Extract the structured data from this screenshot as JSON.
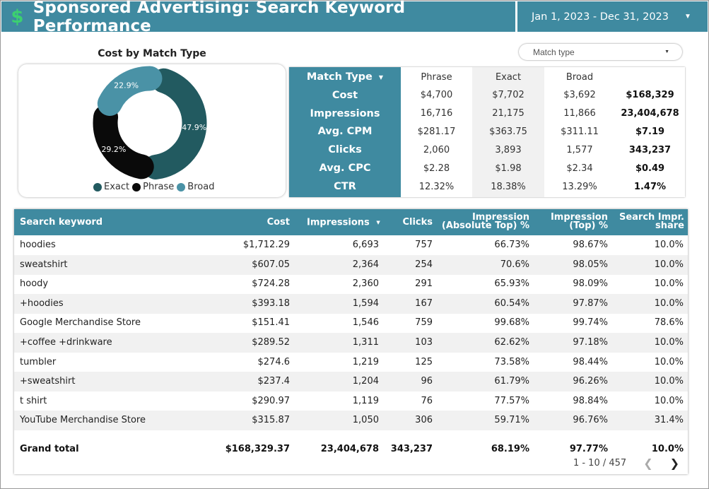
{
  "header": {
    "icon": "dollar-icon",
    "title": "Sponsored Advertising: Search Keyword Performance",
    "date_range": "Jan 1, 2023 - Dec 31, 2023"
  },
  "colors": {
    "header_bg": "#3f8aa0",
    "dollar": "#3cd070",
    "exact": "#225a60",
    "phrase": "#0a0a0a",
    "broad": "#4a92a6"
  },
  "donut": {
    "title": "Cost by Match Type",
    "segments": [
      {
        "name": "Exact",
        "percent_label": "47.9%",
        "value": 47.9
      },
      {
        "name": "Phrase",
        "percent_label": "29.2%",
        "value": 29.2
      },
      {
        "name": "Broad",
        "percent_label": "22.9%",
        "value": 22.9
      }
    ],
    "legend": [
      "Exact",
      "Phrase",
      "Broad"
    ]
  },
  "match_type_filter": {
    "label": "Match type"
  },
  "pivot": {
    "header_label": "Match Type",
    "row_labels": [
      "Cost",
      "Impressions",
      "Avg. CPM",
      "Clicks",
      "Avg. CPC",
      "CTR"
    ],
    "columns": [
      {
        "name": "Phrase",
        "values": [
          "$4,700",
          "16,716",
          "$281.17",
          "2,060",
          "$2.28",
          "12.32%"
        ]
      },
      {
        "name": "Exact",
        "values": [
          "$7,702",
          "21,175",
          "$363.75",
          "3,893",
          "$1.98",
          "18.38%"
        ]
      },
      {
        "name": "Broad",
        "values": [
          "$3,692",
          "11,866",
          "$311.11",
          "1,577",
          "$2.34",
          "13.29%"
        ]
      },
      {
        "name": "",
        "values": [
          "$168,329",
          "23,404,678",
          "$7.19",
          "343,237",
          "$0.49",
          "1.47%"
        ]
      }
    ]
  },
  "keyword_table": {
    "headers": {
      "keyword": "Search keyword",
      "cost": "Cost",
      "impressions": "Impressions",
      "clicks": "Clicks",
      "abs_top_1": "Impression",
      "abs_top_2": "(Absolute Top) %",
      "top_1": "Impression",
      "top_2": "(Top) %",
      "share_1": "Search Impr.",
      "share_2": "share"
    },
    "rows": [
      [
        "hoodies",
        "$1,712.29",
        "6,693",
        "757",
        "66.73%",
        "98.67%",
        "10.0%"
      ],
      [
        "sweatshirt",
        "$607.05",
        "2,364",
        "254",
        "70.6%",
        "98.05%",
        "10.0%"
      ],
      [
        "hoody",
        "$724.28",
        "2,360",
        "291",
        "65.93%",
        "98.09%",
        "10.0%"
      ],
      [
        "+hoodies",
        "$393.18",
        "1,594",
        "167",
        "60.54%",
        "97.87%",
        "10.0%"
      ],
      [
        "Google Merchandise Store",
        "$151.41",
        "1,546",
        "759",
        "99.68%",
        "99.74%",
        "78.6%"
      ],
      [
        "+coffee +drinkware",
        "$289.52",
        "1,311",
        "103",
        "62.62%",
        "97.18%",
        "10.0%"
      ],
      [
        "tumbler",
        "$274.6",
        "1,219",
        "125",
        "73.58%",
        "98.44%",
        "10.0%"
      ],
      [
        "+sweatshirt",
        "$237.4",
        "1,204",
        "96",
        "61.79%",
        "96.26%",
        "10.0%"
      ],
      [
        "t shirt",
        "$290.97",
        "1,119",
        "76",
        "77.57%",
        "98.84%",
        "10.0%"
      ],
      [
        "YouTube Merchandise Store",
        "$315.87",
        "1,050",
        "306",
        "59.71%",
        "96.76%",
        "31.4%"
      ]
    ],
    "total": [
      "Grand total",
      "$168,329.37",
      "23,404,678",
      "343,237",
      "68.19%",
      "97.77%",
      "10.0%"
    ],
    "pagination": "1 - 10 / 457"
  }
}
